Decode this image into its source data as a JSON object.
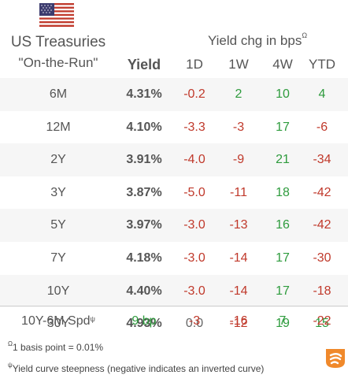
{
  "header": {
    "title_line1": "US Treasuries",
    "title_line2": "\"On-the-Run\"",
    "yield_chg_label": "Yield chg in bps",
    "yield_chg_marker": "Ω"
  },
  "columns": {
    "yield": "Yield",
    "d1": "1D",
    "w1": "1W",
    "w4": "4W",
    "ytd": "YTD"
  },
  "rows": [
    {
      "label": "6M",
      "yield": "4.31%",
      "d1": "-0.2",
      "w1": "2",
      "w4": "10",
      "ytd": "4"
    },
    {
      "label": "12M",
      "yield": "4.10%",
      "d1": "-3.3",
      "w1": "-3",
      "w4": "17",
      "ytd": "-6"
    },
    {
      "label": "2Y",
      "yield": "3.91%",
      "d1": "-4.0",
      "w1": "-9",
      "w4": "21",
      "ytd": "-34"
    },
    {
      "label": "3Y",
      "yield": "3.87%",
      "d1": "-5.0",
      "w1": "-11",
      "w4": "18",
      "ytd": "-42"
    },
    {
      "label": "5Y",
      "yield": "3.97%",
      "d1": "-3.0",
      "w1": "-13",
      "w4": "16",
      "ytd": "-42"
    },
    {
      "label": "7Y",
      "yield": "4.18%",
      "d1": "-3.0",
      "w1": "-14",
      "w4": "17",
      "ytd": "-30"
    },
    {
      "label": "10Y",
      "yield": "4.40%",
      "d1": "-3.0",
      "w1": "-14",
      "w4": "17",
      "ytd": "-18"
    },
    {
      "label": "30Y",
      "yield": "4.93%",
      "d1": "0.0",
      "w1": "-12",
      "w4": "19",
      "ytd": "15"
    }
  ],
  "spread": {
    "label": "10Y-6M Spd",
    "marker": "ψ",
    "yield": "9 bp",
    "d1": "-3",
    "w1": "-16",
    "w4": "7",
    "ytd": "-22"
  },
  "notes": {
    "n1_marker": "Ω",
    "n1_text": "1 basis point = 0.01%",
    "n2_marker": "ψ",
    "n2_text": "Yield curve steepness (negative indicates an inverted curve)"
  },
  "colors": {
    "negative": "#c0392b",
    "positive": "#2e9b3d",
    "neutral": "#666666",
    "row_shade": "#f6f6f6",
    "logo_orange": "#f0892b"
  },
  "icons": {
    "flag": "us-flag-icon",
    "logo": "brand-logo-icon"
  }
}
